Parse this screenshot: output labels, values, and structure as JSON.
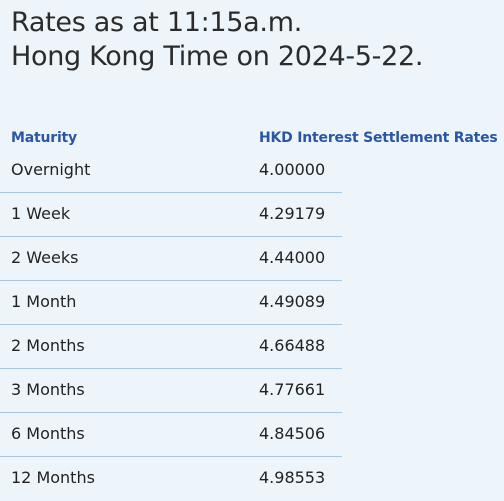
{
  "title": {
    "line1": "Rates as at 11:15a.m.",
    "line2": "Hong Kong Time on 2024-5-22."
  },
  "table": {
    "headers": {
      "maturity": "Maturity",
      "rate": "HKD Interest Settlement Rates"
    },
    "rows": [
      {
        "maturity": "Overnight",
        "rate": "4.00000"
      },
      {
        "maturity": "1 Week",
        "rate": "4.29179"
      },
      {
        "maturity": "2 Weeks",
        "rate": "4.44000"
      },
      {
        "maturity": "1 Month",
        "rate": "4.49089"
      },
      {
        "maturity": "2 Months",
        "rate": "4.66488"
      },
      {
        "maturity": "3 Months",
        "rate": "4.77661"
      },
      {
        "maturity": "6 Months",
        "rate": "4.84506"
      },
      {
        "maturity": "12 Months",
        "rate": "4.98553"
      }
    ]
  },
  "colors": {
    "background": "#eef5fa",
    "header_text": "#2a56a8",
    "row_divider": "#a9c7dd"
  }
}
